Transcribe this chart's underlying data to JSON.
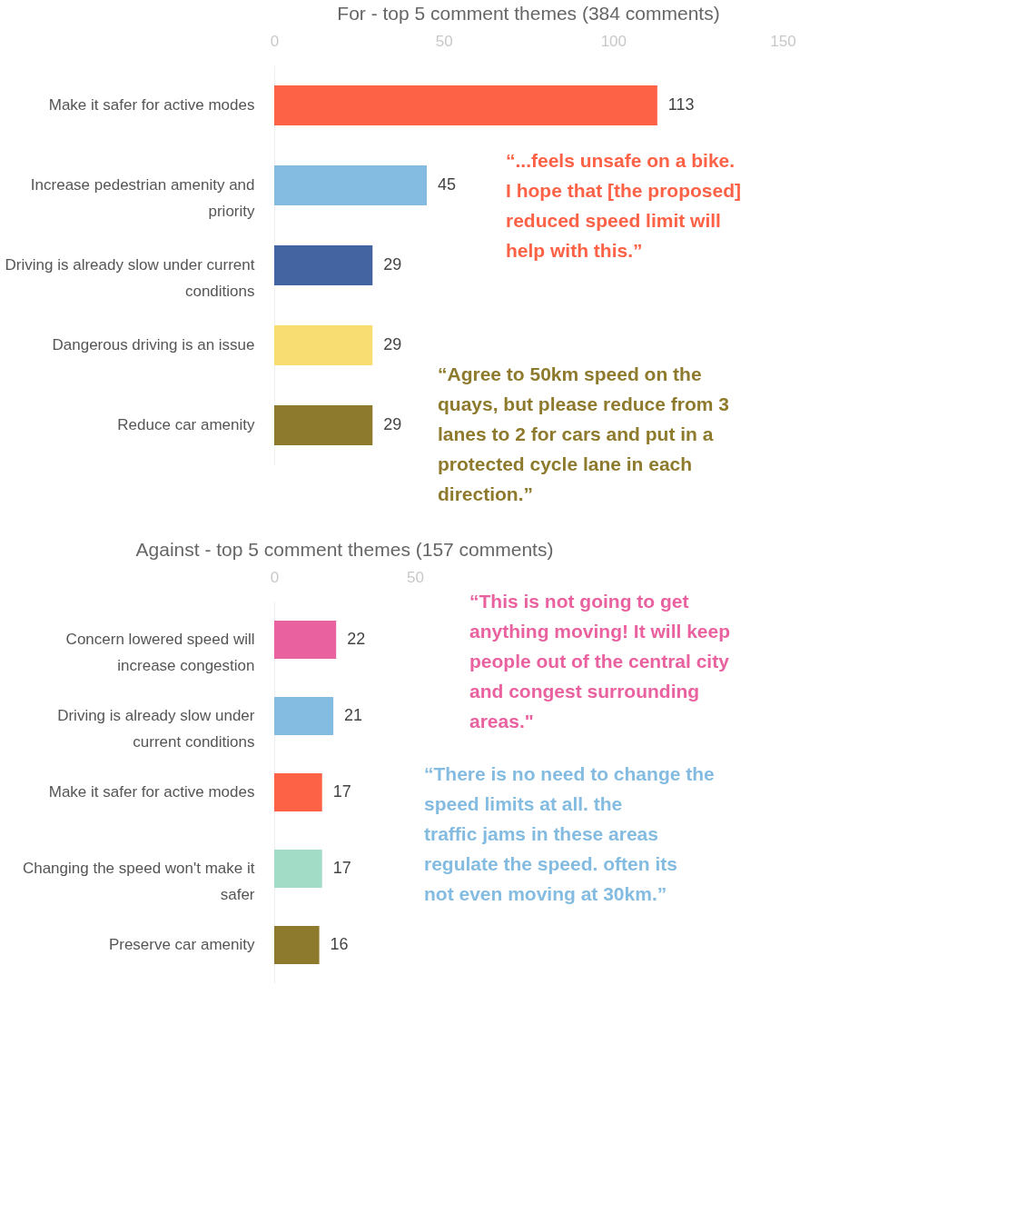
{
  "chart_data": [
    {
      "type": "bar",
      "orientation": "horizontal",
      "title": "For - top 5 comment themes (384 comments)",
      "categories": [
        "Make it safer for active modes",
        "Increase pedestrian amenity and priority",
        "Driving is already slow under current conditions",
        "Dangerous driving is an issue",
        "Reduce car amenity"
      ],
      "values": [
        113,
        45,
        29,
        29,
        29
      ],
      "colors": [
        "#fd6146",
        "#84bbe0",
        "#4463a1",
        "#f8de72",
        "#8e7a2d"
      ],
      "xlim": [
        0,
        150
      ],
      "xticks": [
        0,
        50,
        100,
        150
      ],
      "data_labels": true,
      "grid": false,
      "annotations": [
        "“...feels unsafe on a bike. I hope that [the proposed] reduced speed limit will help with this.”",
        "“Agree to 50km speed on the quays, but please reduce from 3 lanes to 2 for cars and put in a protected cycle lane in each direction.”"
      ]
    },
    {
      "type": "bar",
      "orientation": "horizontal",
      "title": "Against - top 5 comment themes (157 comments)",
      "categories": [
        "Concern lowered speed will increase congestion",
        "Driving is already slow under current conditions",
        "Make it safer for active modes",
        "Changing the speed won't make it safer",
        "Preserve car amenity"
      ],
      "values": [
        22,
        21,
        17,
        17,
        16
      ],
      "colors": [
        "#e9619f",
        "#84bbe0",
        "#fd6146",
        "#a2dcc7",
        "#8e7a2d"
      ],
      "xlim": [
        0,
        50
      ],
      "xticks": [
        0,
        50
      ],
      "data_labels": true,
      "grid": false,
      "annotations": [
        "“This is not going to get anything moving! It will keep people out of the central city and congest surrounding areas.\"",
        "“There is no need to change the speed limits at all. the traffic jams in these areas regulate the speed. often its not even moving at 30km.”"
      ]
    }
  ]
}
